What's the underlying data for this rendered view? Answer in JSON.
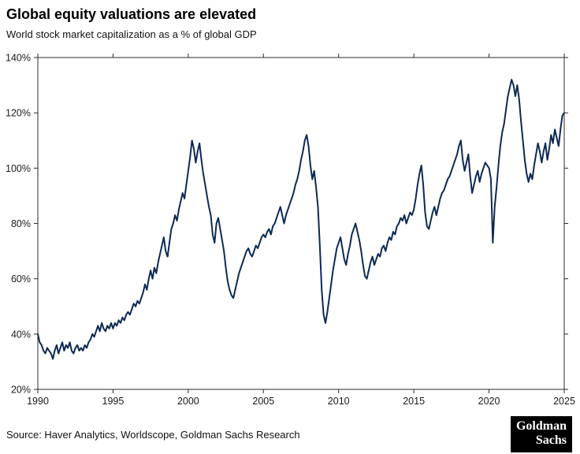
{
  "header": {
    "title": "Global equity valuations are elevated",
    "subtitle": "World stock market capitalization as a % of global GDP"
  },
  "footer": {
    "source": "Source: Haver Analytics, Worldscope, Goldman Sachs Research",
    "logo_line1": "Goldman",
    "logo_line2": "Sachs"
  },
  "chart_data": {
    "type": "line",
    "title": "Global equity valuations are elevated",
    "subtitle": "World stock market capitalization as a % of global GDP",
    "xlabel": "",
    "ylabel": "World stock market cap as % of global GDP",
    "x_min": 1990,
    "x_max": 2025,
    "ylim": [
      20,
      140
    ],
    "grid": false,
    "line_color": "#0d2a54",
    "x_tick_values": [
      1990,
      1995,
      2000,
      2005,
      2010,
      2015,
      2020,
      2025
    ],
    "x_tick_labels": [
      "1990",
      "1995",
      "2000",
      "2005",
      "2010",
      "2015",
      "2020",
      "2025"
    ],
    "y_tick_values": [
      20,
      40,
      60,
      80,
      100,
      120,
      140
    ],
    "y_tick_labels": [
      "20%",
      "40%",
      "60%",
      "80%",
      "100%",
      "120%",
      "140%"
    ],
    "series": [
      {
        "name": "World stock market capitalization as a % of global GDP",
        "x_start": 1990,
        "x_step": 0.125,
        "values": [
          40,
          37,
          36,
          34,
          33,
          35,
          34,
          33,
          31,
          34,
          36,
          33,
          35,
          37,
          34,
          36,
          35,
          37,
          34,
          33,
          35,
          36,
          34,
          35,
          34,
          36,
          35,
          37,
          38,
          40,
          39,
          41,
          43,
          41,
          44,
          42,
          41,
          43,
          42,
          44,
          42,
          44,
          43,
          45,
          44,
          46,
          45,
          47,
          48,
          47,
          49,
          51,
          50,
          52,
          51,
          53,
          55,
          58,
          56,
          60,
          63,
          60,
          64,
          62,
          66,
          69,
          72,
          75,
          70,
          68,
          73,
          78,
          80,
          83,
          81,
          85,
          88,
          91,
          89,
          94,
          99,
          104,
          110,
          107,
          102,
          106,
          109,
          103,
          98,
          94,
          90,
          86,
          83,
          76,
          73,
          80,
          82,
          78,
          74,
          70,
          64,
          59,
          56,
          54,
          53,
          56,
          59,
          62,
          64,
          66,
          68,
          70,
          71,
          69,
          68,
          70,
          72,
          71,
          73,
          75,
          76,
          75,
          77,
          78,
          76,
          79,
          80,
          82,
          84,
          86,
          83,
          80,
          83,
          85,
          87,
          89,
          91,
          94,
          96,
          99,
          103,
          106,
          110,
          112,
          108,
          101,
          96,
          99,
          93,
          86,
          72,
          56,
          47,
          44,
          48,
          53,
          58,
          63,
          67,
          71,
          73,
          75,
          71,
          67,
          65,
          69,
          72,
          76,
          78,
          80,
          77,
          74,
          70,
          65,
          61,
          60,
          63,
          66,
          68,
          65,
          67,
          69,
          68,
          71,
          72,
          70,
          73,
          75,
          74,
          77,
          76,
          79,
          80,
          82,
          81,
          83,
          80,
          82,
          84,
          83,
          85,
          89,
          94,
          98,
          101,
          94,
          84,
          79,
          78,
          81,
          84,
          86,
          83,
          86,
          89,
          91,
          92,
          94,
          96,
          97,
          99,
          101,
          103,
          105,
          108,
          110,
          103,
          99,
          102,
          105,
          97,
          91,
          94,
          97,
          99,
          95,
          98,
          100,
          102,
          101,
          100,
          96,
          73,
          86,
          93,
          101,
          108,
          113,
          116,
          121,
          126,
          129,
          132,
          130,
          126,
          130,
          125,
          117,
          110,
          103,
          98,
          95,
          98,
          96,
          101,
          105,
          109,
          106,
          102,
          106,
          109,
          103,
          107,
          112,
          109,
          114,
          111,
          108,
          114,
          119,
          120
        ]
      }
    ]
  }
}
